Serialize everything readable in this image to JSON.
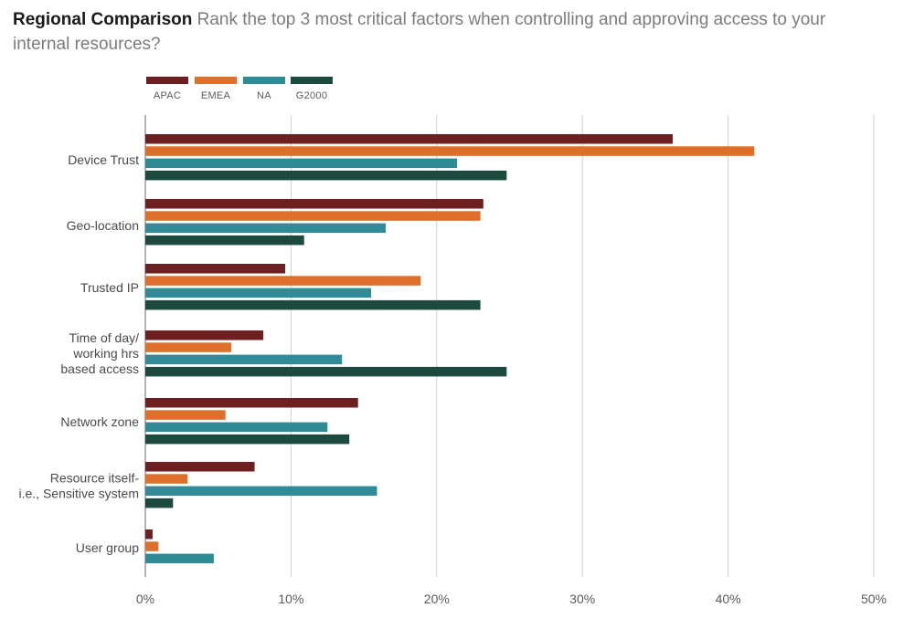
{
  "header": {
    "title_bold": "Regional Comparison",
    "title_rest": "Rank the top 3 most critical factors when controlling and approving access to your internal resources?"
  },
  "chart_data": {
    "type": "bar",
    "orientation": "horizontal",
    "title": "Regional Comparison",
    "subtitle": "Rank the top 3 most critical factors when controlling and approving access to your internal resources?",
    "categories": [
      [
        "Device Trust"
      ],
      [
        "Geo-location"
      ],
      [
        "Trusted IP"
      ],
      [
        "Time of day/",
        "working hrs",
        "based access"
      ],
      [
        "Network zone"
      ],
      [
        "Resource itself-",
        "i.e., Sensitive system"
      ],
      [
        "User group"
      ]
    ],
    "series": [
      {
        "name": "APAC",
        "color": "#6e2020",
        "values": [
          36.2,
          23.2,
          9.6,
          8.1,
          14.6,
          7.5,
          0.5
        ]
      },
      {
        "name": "EMEA",
        "color": "#dd6f2b",
        "values": [
          41.8,
          23.0,
          18.9,
          5.9,
          5.5,
          2.9,
          0.9
        ]
      },
      {
        "name": "NA",
        "color": "#2f8c96",
        "values": [
          21.4,
          16.5,
          15.5,
          13.5,
          12.5,
          15.9,
          4.7
        ]
      },
      {
        "name": "G2000",
        "color": "#1d4a3e",
        "values": [
          24.8,
          10.9,
          23.0,
          24.8,
          14.0,
          1.9,
          0
        ]
      }
    ],
    "xlim": [
      0,
      50
    ],
    "xticks": [
      0,
      10,
      20,
      30,
      40,
      50
    ],
    "xtick_labels": [
      "0%",
      "10%",
      "20%",
      "30%",
      "40%",
      "50%"
    ],
    "grid": true,
    "legend_position": "top-left"
  }
}
